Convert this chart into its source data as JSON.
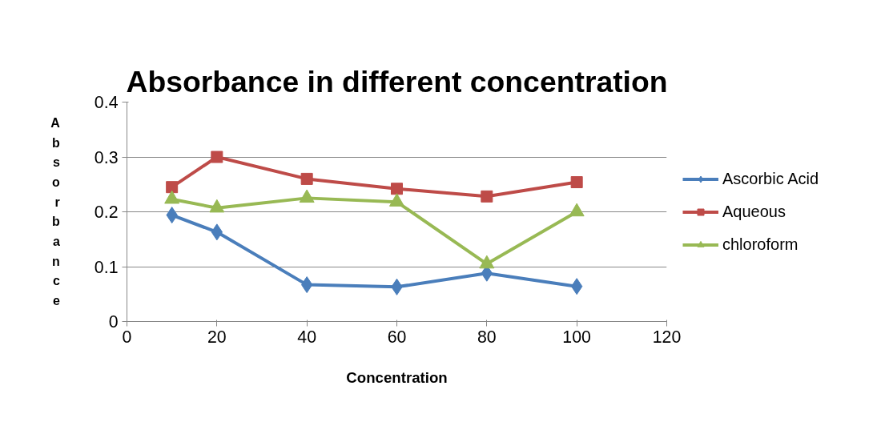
{
  "chart_data": {
    "type": "line",
    "title": "Absorbance in different concentration",
    "xlabel": "Concentration",
    "ylabel": "Absorbance",
    "x": [
      10,
      20,
      40,
      60,
      80,
      100
    ],
    "series": [
      {
        "name": "Ascorbic Acid",
        "color": "#4a7ebb",
        "marker": "diamond",
        "values": [
          0.194,
          0.163,
          0.067,
          0.063,
          0.088,
          0.064
        ]
      },
      {
        "name": "Aqueous",
        "color": "#be4b48",
        "marker": "square",
        "values": [
          0.245,
          0.3,
          0.26,
          0.242,
          0.228,
          0.254
        ]
      },
      {
        "name": "chloroform",
        "color": "#98b954",
        "marker": "triangle",
        "values": [
          0.223,
          0.207,
          0.225,
          0.218,
          0.105,
          0.2
        ]
      }
    ],
    "xlim": [
      0,
      120
    ],
    "xticks": [
      0,
      20,
      40,
      60,
      80,
      100,
      120
    ],
    "ylim": [
      0,
      0.4
    ],
    "yticks": [
      0,
      0.1,
      0.2,
      0.3,
      0.4
    ],
    "grid": "y",
    "legend": "right",
    "line_style": "solid"
  }
}
